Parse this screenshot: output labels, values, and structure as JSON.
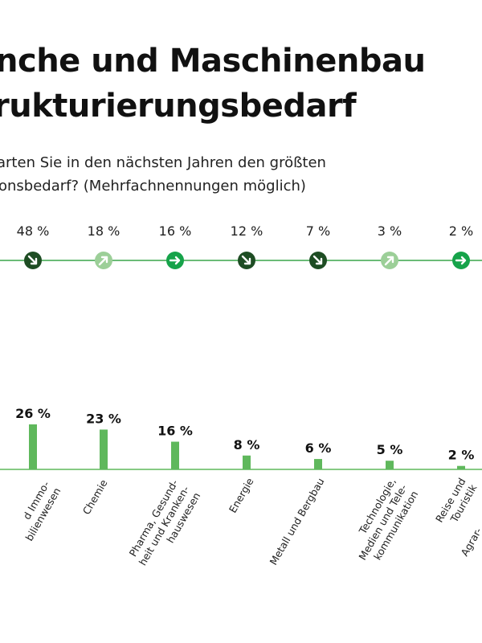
{
  "title": {
    "line1": "nche und Maschinenbau",
    "line2": "rukturierungsbedarf"
  },
  "question": {
    "line1": "arten Sie in den nächsten Jahren den größten",
    "line2": "onsbedarf? (Mehrfachnennungen möglich)"
  },
  "colors": {
    "dark_green": "#1e4d24",
    "mid_green": "#16a34a",
    "light_green": "#9ccf98",
    "bar_green": "#5fb85c",
    "line_green": "#3aa64a"
  },
  "chart_data": [
    {
      "type": "table",
      "values": [
        48,
        18,
        16,
        12,
        7,
        3,
        2
      ],
      "labels": [
        "48 %",
        "18 %",
        "16 %",
        "12 %",
        "7 %",
        "3 %",
        "2 %"
      ],
      "trend_icons": [
        "arrow-down-right-icon",
        "arrow-up-right-icon",
        "arrow-right-icon",
        "arrow-down-right-icon",
        "arrow-down-right-icon",
        "arrow-up-right-icon",
        "arrow-right-icon"
      ],
      "trend_colors": [
        "#1e4d24",
        "#9ccf98",
        "#16a34a",
        "#1e4d24",
        "#1e4d24",
        "#9ccf98",
        "#16a34a"
      ]
    },
    {
      "type": "bar",
      "categories": [
        "d Immo-\nbilienwesen",
        "Chemie",
        "Pharma, Gesund-\nheit und Kranken-\nhauswesen",
        "Energie",
        "Metall und Bergbau",
        "Technologie,\nMedien und Tele-\nkommunikation",
        "Reise und\nTouristik",
        "Agrar-"
      ],
      "values": [
        26,
        23,
        16,
        8,
        6,
        5,
        2,
        null
      ],
      "labels": [
        "26 %",
        "23 %",
        "16 %",
        "8 %",
        "6 %",
        "5 %",
        "2 %",
        ""
      ],
      "ylim": [
        0,
        30
      ]
    }
  ]
}
